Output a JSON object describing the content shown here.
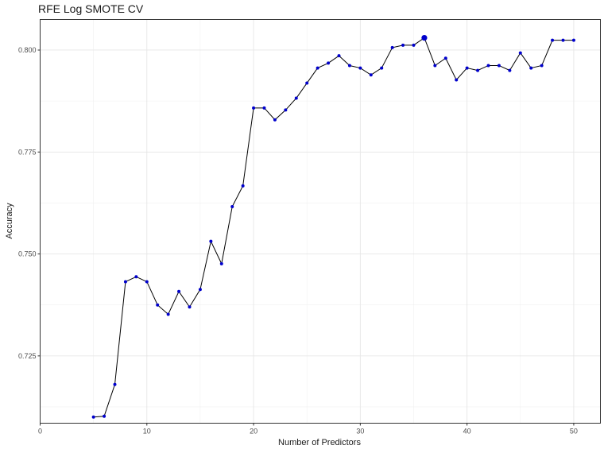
{
  "chart_data": {
    "type": "line",
    "title": "RFE Log SMOTE CV",
    "xlabel": "Number of Predictors",
    "ylabel": "Accuracy",
    "xlim": [
      0,
      52.5
    ],
    "ylim": [
      0.7085,
      0.8075
    ],
    "x_ticks": [
      0,
      10,
      20,
      30,
      40,
      50
    ],
    "x_tick_labels": [
      "0",
      "10",
      "20",
      "30",
      "40",
      "50"
    ],
    "y_ticks": [
      0.725,
      0.75,
      0.775,
      0.8
    ],
    "y_tick_labels": [
      "0.725",
      "0.750",
      "0.775",
      "0.800"
    ],
    "grid": true,
    "line_color": "#000000",
    "point_color": "#0000cc",
    "highlight": {
      "x": 36,
      "y": 0.803
    },
    "series": [
      {
        "x": [
          5,
          6,
          7,
          8,
          9,
          10,
          11,
          12,
          13,
          14,
          15,
          16,
          17,
          18,
          19,
          20,
          21,
          22,
          23,
          24,
          25,
          26,
          27,
          28,
          29,
          30,
          31,
          32,
          33,
          34,
          35,
          36,
          37,
          38,
          39,
          40,
          41,
          42,
          43,
          44,
          45,
          46,
          47,
          48,
          49,
          50
        ],
        "values": [
          0.71,
          0.7102,
          0.718,
          0.7432,
          0.7444,
          0.7432,
          0.7375,
          0.7352,
          0.7408,
          0.737,
          0.7413,
          0.7531,
          0.7476,
          0.7616,
          0.7667,
          0.7858,
          0.7858,
          0.7829,
          0.7853,
          0.7882,
          0.7919,
          0.7956,
          0.7968,
          0.7986,
          0.7962,
          0.7956,
          0.7939,
          0.7956,
          0.8006,
          0.8012,
          0.8012,
          0.803,
          0.7962,
          0.798,
          0.7927,
          0.7956,
          0.795,
          0.7962,
          0.7962,
          0.795,
          0.7993,
          0.7956,
          0.7962,
          0.8024,
          0.8024,
          0.8024
        ]
      }
    ]
  }
}
